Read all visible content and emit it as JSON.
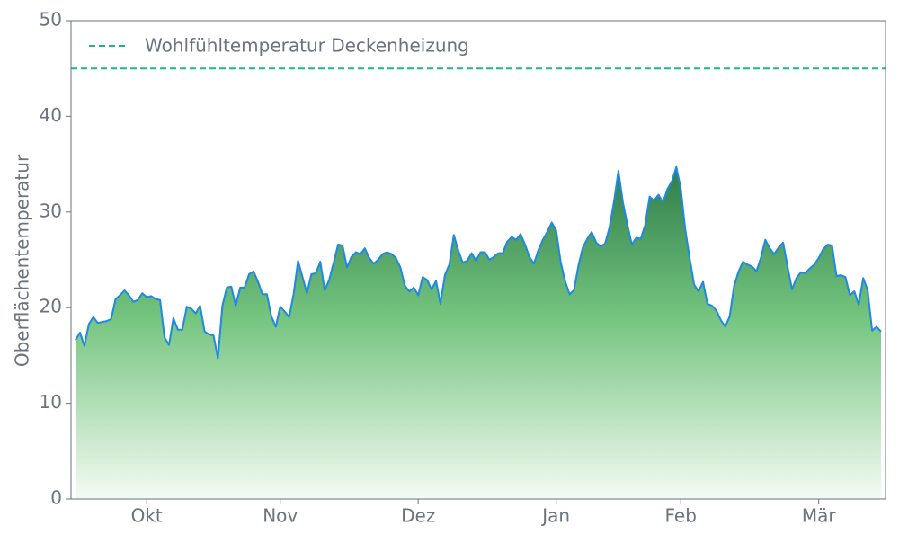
{
  "chart_data": {
    "type": "area",
    "y_label": "Oberflächentemperatur",
    "ylim": [
      0,
      50
    ],
    "yticks": [
      0,
      10,
      20,
      30,
      40,
      50
    ],
    "reference_line": {
      "value": 45,
      "label": "Wohlfühltemperatur Deckenheizung",
      "color": "#1db88a"
    },
    "legend": "upper left",
    "categories": [
      null,
      null,
      null,
      null,
      null,
      null,
      null,
      null,
      null,
      null,
      null,
      null,
      null,
      null,
      null,
      null,
      "Okt",
      null,
      null,
      null,
      null,
      null,
      null,
      null,
      null,
      null,
      null,
      null,
      null,
      null,
      null,
      null,
      null,
      null,
      null,
      null,
      null,
      null,
      null,
      null,
      null,
      null,
      null,
      null,
      null,
      null,
      "Nov",
      null,
      null,
      null,
      null,
      null,
      null,
      null,
      null,
      null,
      null,
      null,
      null,
      null,
      null,
      null,
      null,
      null,
      null,
      null,
      null,
      null,
      null,
      null,
      null,
      null,
      null,
      null,
      null,
      null,
      null,
      "Dez",
      null,
      null,
      null,
      null,
      null,
      null,
      null,
      null,
      null,
      null,
      null,
      null,
      null,
      null,
      null,
      null,
      null,
      null,
      null,
      null,
      null,
      null,
      null,
      null,
      null,
      null,
      null,
      null,
      null,
      null,
      "Jan",
      null,
      null,
      null,
      null,
      null,
      null,
      null,
      null,
      null,
      null,
      null,
      null,
      null,
      null,
      null,
      null,
      null,
      null,
      null,
      null,
      null,
      null,
      null,
      null,
      null,
      null,
      null,
      "Feb",
      null,
      null,
      null,
      null,
      null,
      null,
      null,
      null,
      null,
      null,
      null,
      null,
      null,
      null,
      null,
      null,
      null,
      null,
      null,
      null,
      null,
      null,
      null,
      null,
      null,
      null,
      null,
      null,
      null,
      null,
      "Mär",
      null,
      null,
      null,
      null,
      null,
      null,
      null,
      null,
      null,
      null,
      null,
      null,
      null,
      null
    ],
    "series": [
      {
        "color": "#1e88e5",
        "values": [
          16.6,
          17.4,
          16.0,
          18.3,
          19.0,
          18.4,
          18.5,
          18.6,
          18.8,
          20.9,
          21.3,
          21.8,
          21.3,
          20.6,
          20.8,
          21.5,
          21.1,
          21.2,
          20.9,
          20.8,
          16.9,
          16.1,
          18.9,
          17.7,
          17.7,
          20.1,
          19.9,
          19.4,
          20.2,
          17.5,
          17.2,
          17.1,
          14.7,
          20.2,
          22.1,
          22.2,
          20.2,
          22.1,
          22.1,
          23.5,
          23.8,
          22.7,
          21.4,
          21.4,
          19.1,
          18.0,
          20.1,
          19.6,
          19.0,
          21.4,
          24.9,
          23.2,
          21.5,
          23.5,
          23.6,
          24.8,
          21.8,
          22.9,
          24.7,
          26.6,
          26.5,
          24.2,
          25.3,
          25.8,
          25.6,
          26.2,
          25.2,
          24.6,
          25.0,
          25.6,
          25.8,
          25.6,
          25.2,
          24.2,
          22.3,
          21.7,
          22.1,
          21.3,
          23.2,
          22.9,
          21.9,
          22.8,
          20.4,
          23.4,
          24.5,
          27.6,
          26.0,
          24.7,
          24.9,
          25.7,
          24.9,
          25.8,
          25.8,
          25.0,
          25.3,
          25.7,
          25.7,
          26.9,
          27.4,
          27.1,
          27.7,
          26.6,
          25.3,
          24.6,
          26.0,
          27.1,
          27.9,
          28.9,
          28.1,
          24.8,
          22.8,
          21.4,
          21.8,
          24.4,
          26.3,
          27.2,
          27.9,
          26.8,
          26.4,
          26.7,
          28.4,
          31.1,
          34.3,
          31.0,
          28.7,
          26.6,
          27.3,
          27.2,
          28.6,
          31.6,
          31.2,
          31.8,
          31.0,
          32.4,
          33.2,
          34.7,
          32.5,
          28.2,
          25.2,
          22.4,
          21.7,
          22.7,
          20.4,
          20.2,
          19.7,
          18.7,
          18.0,
          19.1,
          22.3,
          23.8,
          24.8,
          24.5,
          24.3,
          23.8,
          25.2,
          27.1,
          26.2,
          25.6,
          26.3,
          26.8,
          24.3,
          21.9,
          23.1,
          23.7,
          23.6,
          24.1,
          24.5,
          25.2,
          26.1,
          26.6,
          26.5,
          23.3,
          23.4,
          23.2,
          21.3,
          21.7,
          20.3,
          23.1,
          21.8,
          17.6,
          18.0,
          17.5
        ]
      }
    ]
  }
}
